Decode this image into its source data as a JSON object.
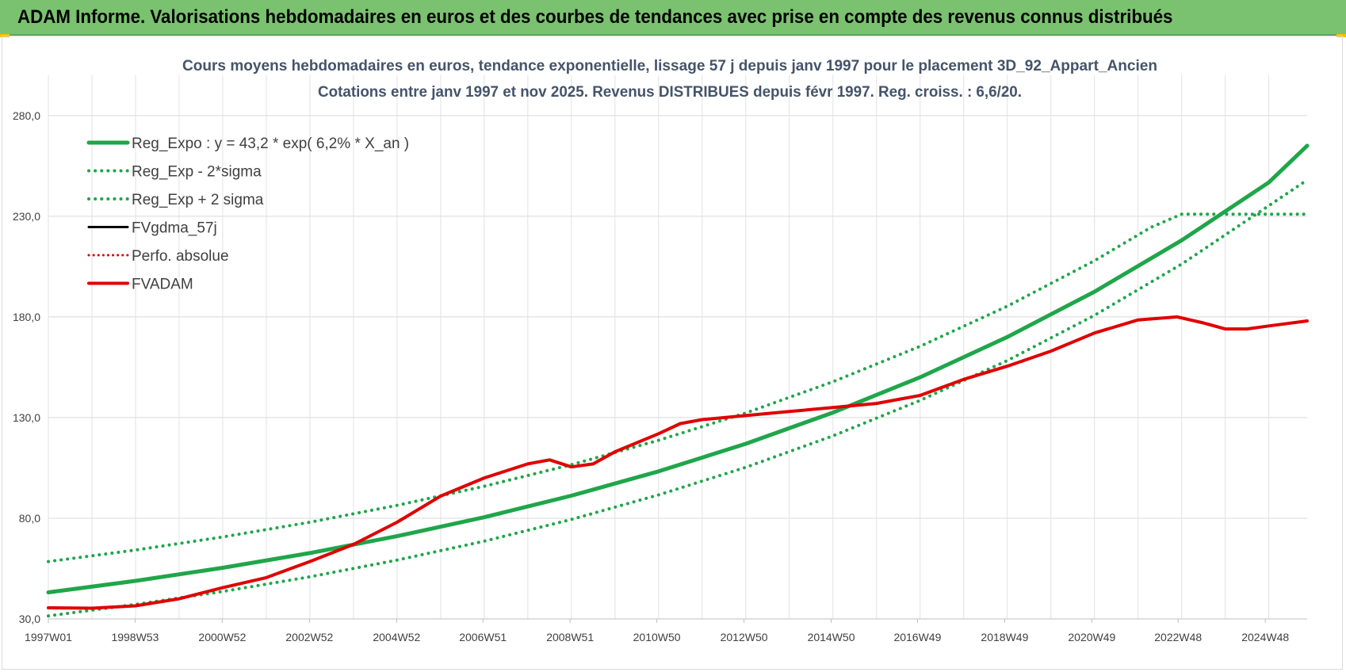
{
  "banner": {
    "title": "ADAM Informe. Valorisations hebdomadaires en euros et des courbes de tendances avec prise en compte des revenus connus distribués"
  },
  "chart_data": {
    "type": "line",
    "title": "Cours moyens hebdomadaires en euros, tendance exponentielle, lissage 57 j depuis janv 1997 pour le placement 3D_92_Appart_Ancien",
    "subtitle": "Cotations entre janv 1997 et nov 2025. Revenus DISTRIBUES depuis févr 1997. Reg. croiss. : 6,6/20.",
    "xlabel": "",
    "ylabel": "",
    "xlim": [
      1997.0,
      2025.88
    ],
    "ylim": [
      30,
      300
    ],
    "grid": true,
    "legend_position": "top-left",
    "x_ticks": [
      {
        "x": 1997.0,
        "label": "1997W01"
      },
      {
        "x": 1998.99,
        "label": "1998W53"
      },
      {
        "x": 2000.99,
        "label": "2000W52"
      },
      {
        "x": 2002.99,
        "label": "2002W52"
      },
      {
        "x": 2004.99,
        "label": "2004W52"
      },
      {
        "x": 2006.97,
        "label": "2006W51"
      },
      {
        "x": 2008.97,
        "label": "2008W51"
      },
      {
        "x": 2010.96,
        "label": "2010W50"
      },
      {
        "x": 2012.96,
        "label": "2012W50"
      },
      {
        "x": 2014.96,
        "label": "2014W50"
      },
      {
        "x": 2016.94,
        "label": "2016W49"
      },
      {
        "x": 2018.94,
        "label": "2018W49"
      },
      {
        "x": 2020.94,
        "label": "2020W49"
      },
      {
        "x": 2022.92,
        "label": "2022W48"
      },
      {
        "x": 2024.92,
        "label": "2024W48"
      }
    ],
    "y_ticks": [
      {
        "y": 30,
        "label": "30,0"
      },
      {
        "y": 80,
        "label": "80,0"
      },
      {
        "y": 130,
        "label": "130,0"
      },
      {
        "y": 180,
        "label": "180,0"
      },
      {
        "y": 230,
        "label": "230,0"
      },
      {
        "y": 280,
        "label": "280,0"
      }
    ],
    "series": [
      {
        "name": "Reg_Expo : y = 43,2 * exp( 6,2% *  X_an )",
        "color": "#1fa64a",
        "style": "solid",
        "width": 5,
        "points": [
          [
            1997,
            43.2
          ],
          [
            1999,
            48.9
          ],
          [
            2001,
            55.4
          ],
          [
            2003,
            62.7
          ],
          [
            2005,
            71.1
          ],
          [
            2007,
            80.5
          ],
          [
            2009,
            91.2
          ],
          [
            2011,
            103.3
          ],
          [
            2013,
            117.0
          ],
          [
            2015,
            132.5
          ],
          [
            2017,
            150.0
          ],
          [
            2019,
            170.0
          ],
          [
            2021,
            192.5
          ],
          [
            2023,
            218.0
          ],
          [
            2025,
            246.8
          ],
          [
            2025.88,
            265.0
          ]
        ]
      },
      {
        "name": "Reg_Exp - 2*sigma",
        "color": "#1fa64a",
        "style": "dotted",
        "width": 4,
        "points": [
          [
            1997,
            31.5
          ],
          [
            1999,
            37.2
          ],
          [
            2001,
            43.6
          ],
          [
            2003,
            50.9
          ],
          [
            2005,
            59.2
          ],
          [
            2007,
            68.6
          ],
          [
            2009,
            79.4
          ],
          [
            2011,
            91.6
          ],
          [
            2013,
            105.3
          ],
          [
            2015,
            120.9
          ],
          [
            2017,
            138.5
          ],
          [
            2019,
            158.3
          ],
          [
            2021,
            180.8
          ],
          [
            2023,
            206.2
          ],
          [
            2025.88,
            248.0
          ]
        ]
      },
      {
        "name": "Reg_Exp + 2 sigma",
        "color": "#1fa64a",
        "style": "dotted",
        "width": 4,
        "points": [
          [
            1997,
            58.5
          ],
          [
            1999,
            64.2
          ],
          [
            2001,
            70.7
          ],
          [
            2003,
            78.0
          ],
          [
            2005,
            86.4
          ],
          [
            2007,
            95.9
          ],
          [
            2009,
            106.6
          ],
          [
            2011,
            118.7
          ],
          [
            2013,
            132.3
          ],
          [
            2015,
            147.8
          ],
          [
            2017,
            165.4
          ],
          [
            2019,
            185.3
          ],
          [
            2021,
            207.9
          ],
          [
            2022.3,
            224.5
          ],
          [
            2023,
            231.0
          ],
          [
            2025.88,
            231.0
          ]
        ]
      },
      {
        "name": "FVgdma_57j",
        "color": "#000000",
        "style": "solid",
        "width": 3,
        "points": [
          [
            1997,
            35.5
          ],
          [
            1998,
            35.3
          ],
          [
            1999,
            36.5
          ],
          [
            2000,
            40.0
          ],
          [
            2001,
            45.5
          ],
          [
            2002,
            50.5
          ],
          [
            2003,
            58.5
          ],
          [
            2004,
            67.0
          ],
          [
            2005,
            78.0
          ],
          [
            2006,
            91.0
          ],
          [
            2007,
            100.0
          ],
          [
            2008,
            107.0
          ],
          [
            2008.5,
            109.0
          ],
          [
            2009,
            105.5
          ],
          [
            2009.5,
            107.0
          ],
          [
            2010,
            113.0
          ],
          [
            2011,
            122.0
          ],
          [
            2011.5,
            127.0
          ],
          [
            2012,
            129.0
          ],
          [
            2013,
            131.0
          ],
          [
            2014,
            133.0
          ],
          [
            2015,
            135.0
          ],
          [
            2016,
            137.0
          ],
          [
            2017,
            141.0
          ],
          [
            2018,
            149.0
          ],
          [
            2019,
            155.5
          ],
          [
            2020,
            163.0
          ],
          [
            2021,
            172.0
          ],
          [
            2022,
            178.5
          ],
          [
            2022.9,
            180.0
          ],
          [
            2023.5,
            177.0
          ],
          [
            2024,
            174.0
          ],
          [
            2024.5,
            174.0
          ],
          [
            2025,
            175.5
          ],
          [
            2025.88,
            178.0
          ]
        ]
      },
      {
        "name": "Perfo. absolue",
        "color": "#e00000",
        "style": "dotted",
        "width": 3,
        "points": []
      },
      {
        "name": "FVADAM",
        "color": "#e00000",
        "style": "solid",
        "width": 4,
        "points": [
          [
            1997,
            35.5
          ],
          [
            1998,
            35.3
          ],
          [
            1999,
            36.5
          ],
          [
            2000,
            40.0
          ],
          [
            2001,
            45.5
          ],
          [
            2002,
            50.5
          ],
          [
            2003,
            58.5
          ],
          [
            2004,
            67.0
          ],
          [
            2005,
            78.0
          ],
          [
            2006,
            91.0
          ],
          [
            2007,
            100.0
          ],
          [
            2008,
            107.0
          ],
          [
            2008.5,
            109.0
          ],
          [
            2009,
            105.5
          ],
          [
            2009.5,
            107.0
          ],
          [
            2010,
            113.0
          ],
          [
            2011,
            122.0
          ],
          [
            2011.5,
            127.0
          ],
          [
            2012,
            129.0
          ],
          [
            2013,
            131.0
          ],
          [
            2014,
            133.0
          ],
          [
            2015,
            135.0
          ],
          [
            2016,
            137.0
          ],
          [
            2017,
            141.0
          ],
          [
            2018,
            149.0
          ],
          [
            2019,
            155.5
          ],
          [
            2020,
            163.0
          ],
          [
            2021,
            172.0
          ],
          [
            2022,
            178.5
          ],
          [
            2022.9,
            180.0
          ],
          [
            2023.5,
            177.0
          ],
          [
            2024,
            174.0
          ],
          [
            2024.5,
            174.0
          ],
          [
            2025,
            175.5
          ],
          [
            2025.88,
            178.0
          ]
        ]
      }
    ]
  }
}
